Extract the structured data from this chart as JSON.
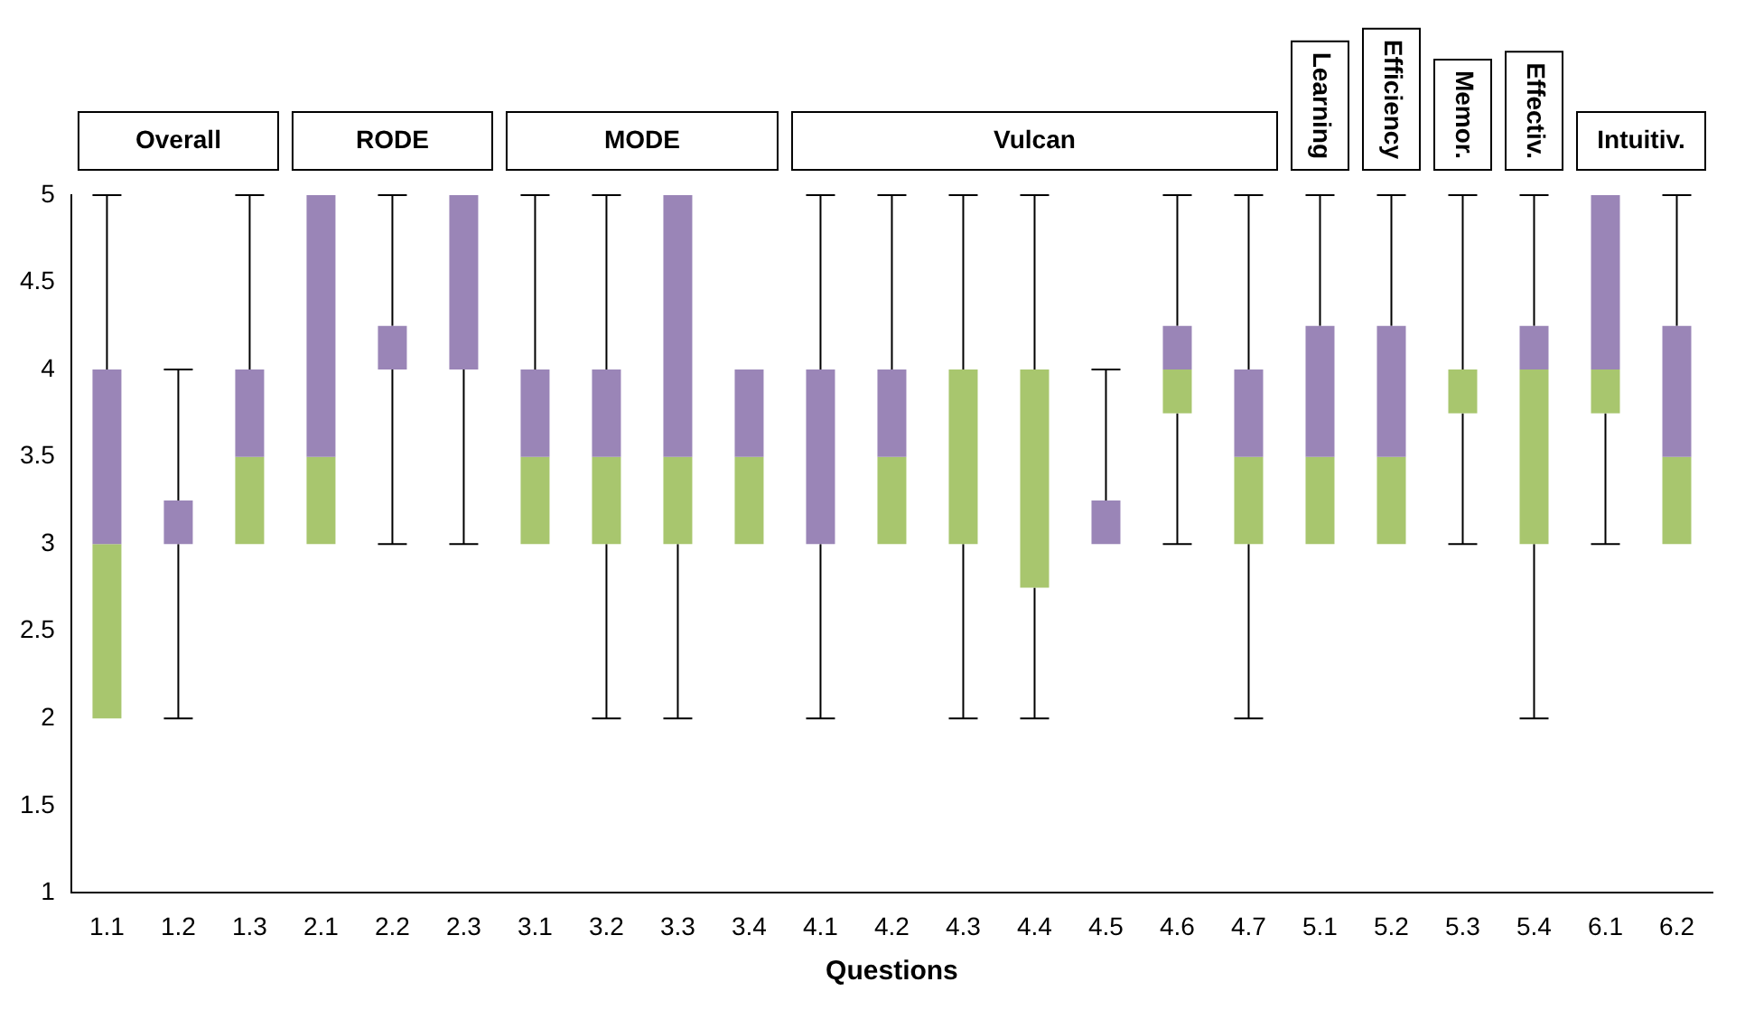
{
  "chart_data": {
    "type": "box",
    "xlabel": "Questions",
    "categories": [
      "1.1",
      "1.2",
      "1.3",
      "2.1",
      "2.2",
      "2.3",
      "3.1",
      "3.2",
      "3.3",
      "3.4",
      "4.1",
      "4.2",
      "4.3",
      "4.4",
      "4.5",
      "4.6",
      "4.7",
      "5.1",
      "5.2",
      "5.3",
      "5.4",
      "6.1",
      "6.2"
    ],
    "colors": [
      "#a8c66e",
      "#9a85b7"
    ],
    "series": [
      {
        "boxes": [
          {
            "low": 2,
            "q1": 2,
            "median": 3,
            "q3": 4,
            "high": 5
          },
          {
            "low": 2,
            "q1": 3,
            "median": 3,
            "q3": 3.25,
            "high": 4
          },
          {
            "low": 3,
            "q1": 3,
            "median": 3.5,
            "q3": 4,
            "high": 5
          },
          {
            "low": 3,
            "q1": 3,
            "median": 3.5,
            "q3": 5,
            "high": 5
          },
          {
            "low": 3,
            "q1": 4,
            "median": 4,
            "q3": 4.25,
            "high": 5
          },
          {
            "low": 3,
            "q1": 4,
            "median": 4,
            "q3": 5,
            "high": 5
          },
          {
            "low": 3,
            "q1": 3,
            "median": 3.5,
            "q3": 4,
            "high": 5
          },
          {
            "low": 2,
            "q1": 3,
            "median": 3.5,
            "q3": 4,
            "high": 5
          },
          {
            "low": 2,
            "q1": 3,
            "median": 3.5,
            "q3": 5,
            "high": 5
          },
          {
            "low": 3,
            "q1": 3,
            "median": 3.5,
            "q3": 4,
            "high": 4
          },
          {
            "low": 2,
            "q1": 3,
            "median": 3,
            "q3": 4,
            "high": 5
          },
          {
            "low": 3,
            "q1": 3,
            "median": 3.5,
            "q3": 4,
            "high": 5
          },
          {
            "low": 2,
            "q1": 3,
            "median": 4,
            "q3": 4,
            "high": 5
          },
          {
            "low": 2,
            "q1": 2.75,
            "median": 4,
            "q3": 4,
            "high": 5
          },
          {
            "low": 3,
            "q1": 3,
            "median": 3,
            "q3": 3.25,
            "high": 4
          },
          {
            "low": 3,
            "q1": 3.75,
            "median": 4,
            "q3": 4.25,
            "high": 5
          },
          {
            "low": 2,
            "q1": 3,
            "median": 3.5,
            "q3": 4,
            "high": 5
          },
          {
            "low": 3,
            "q1": 3,
            "median": 3.5,
            "q3": 4.25,
            "high": 5
          },
          {
            "low": 3,
            "q1": 3,
            "median": 3.5,
            "q3": 4.25,
            "high": 5
          },
          {
            "low": 3,
            "q1": 3.75,
            "median": 4,
            "q3": 4,
            "high": 5
          },
          {
            "low": 2,
            "q1": 3,
            "median": 4,
            "q3": 4.25,
            "high": 5
          },
          {
            "low": 3,
            "q1": 3.75,
            "median": 4,
            "q3": 5,
            "high": 5
          },
          {
            "low": 3,
            "q1": 3,
            "median": 3.5,
            "q3": 4.25,
            "high": 5
          }
        ]
      }
    ],
    "ylim": [
      1,
      5
    ],
    "yticks": [
      1,
      1.5,
      2,
      2.5,
      3,
      3.5,
      4,
      4.5,
      5
    ],
    "grid": false,
    "legend": false,
    "annotations": [
      "Overall",
      "RODE",
      "MODE",
      "Vulcan",
      "Learning",
      "Efficiency",
      "Memor.",
      "Effectiv.",
      "Intuitiv."
    ]
  }
}
